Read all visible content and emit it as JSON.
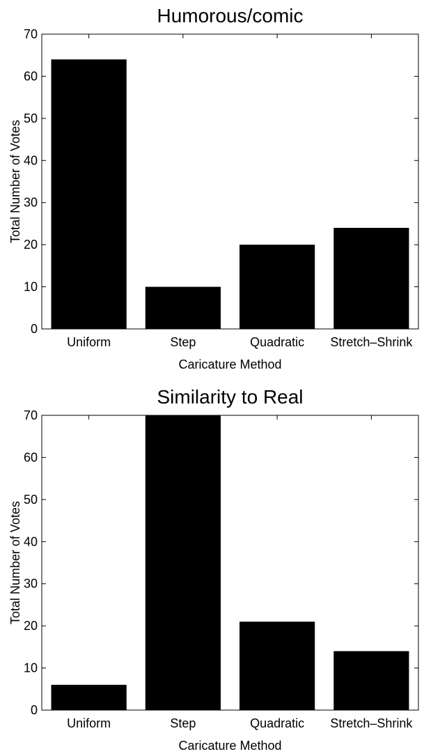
{
  "chart_data": [
    {
      "type": "bar",
      "title": "Humorous/comic",
      "xlabel": "Caricature Method",
      "ylabel": "Total Number of Votes",
      "categories": [
        "Uniform",
        "Step",
        "Quadratic",
        "Stretch–Shrink"
      ],
      "values": [
        64,
        10,
        20,
        24
      ],
      "ylim": [
        0,
        70
      ],
      "yticks": [
        0,
        10,
        20,
        30,
        40,
        50,
        60,
        70
      ],
      "bar_color": "#000000",
      "grid": false,
      "legend": "none"
    },
    {
      "type": "bar",
      "title": "Similarity to Real",
      "xlabel": "Caricature Method",
      "ylabel": "Total Number of Votes",
      "categories": [
        "Uniform",
        "Step",
        "Quadratic",
        "Stretch–Shrink"
      ],
      "values": [
        6,
        70,
        21,
        14
      ],
      "ylim": [
        0,
        70
      ],
      "yticks": [
        0,
        10,
        20,
        30,
        40,
        50,
        60,
        70
      ],
      "bar_color": "#000000",
      "grid": false,
      "legend": "none"
    }
  ]
}
